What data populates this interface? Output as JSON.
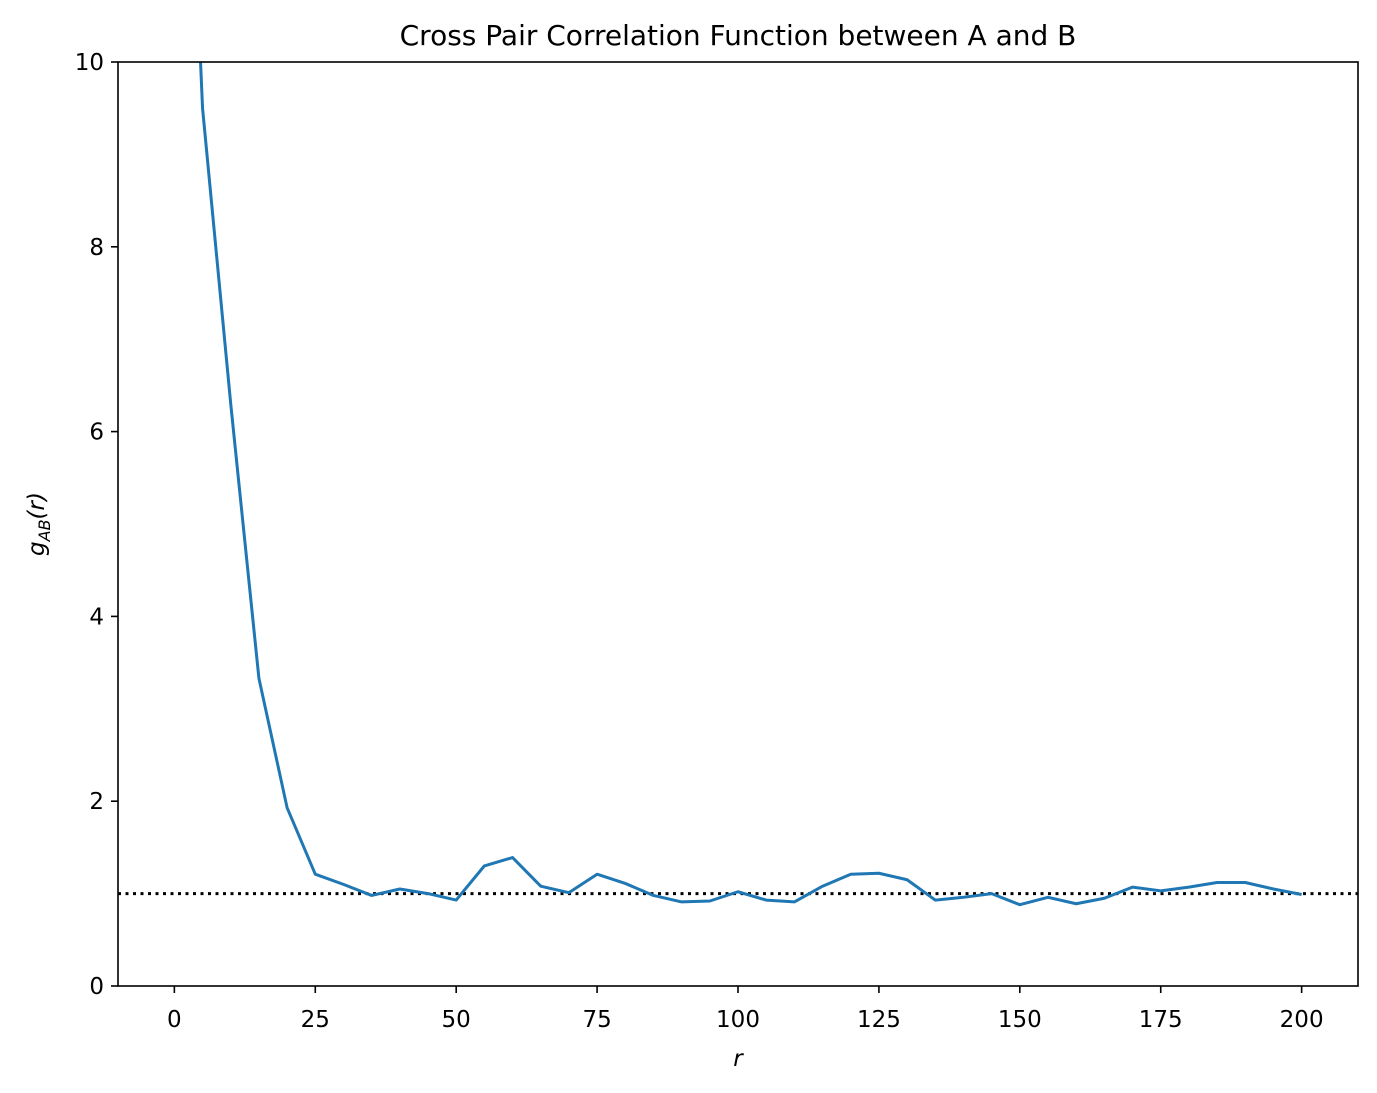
{
  "chart_data": {
    "type": "line",
    "title": "Cross Pair Correlation Function between A and B",
    "xlabel": "r",
    "ylabel": {
      "main": "g",
      "subscript": "AB",
      "suffix": "(r)"
    },
    "xlim": [
      -10,
      210
    ],
    "ylim": [
      0,
      10
    ],
    "x_ticks": [
      0,
      25,
      50,
      75,
      100,
      125,
      150,
      175,
      200
    ],
    "y_ticks": [
      0,
      2,
      4,
      6,
      8,
      10
    ],
    "grid": false,
    "series": [
      {
        "x": [
          0,
          5,
          10,
          15,
          20,
          25,
          30,
          35,
          40,
          45,
          50,
          55,
          60,
          65,
          70,
          75,
          80,
          85,
          90,
          95,
          100,
          105,
          110,
          115,
          120,
          125,
          130,
          135,
          140,
          145,
          150,
          155,
          160,
          165,
          170,
          175,
          180,
          185,
          190,
          195,
          200
        ],
        "values": [
          16.5,
          9.5,
          6.3,
          3.33,
          1.93,
          1.21,
          1.1,
          0.98,
          1.05,
          1.0,
          0.93,
          1.3,
          1.39,
          1.08,
          1.01,
          1.21,
          1.11,
          0.98,
          0.91,
          0.92,
          1.02,
          0.93,
          0.91,
          1.08,
          1.21,
          1.22,
          1.15,
          0.93,
          0.96,
          1.0,
          0.88,
          0.96,
          0.89,
          0.95,
          1.07,
          1.03,
          1.07,
          1.12,
          1.12,
          1.05,
          0.99
        ],
        "color": "#1f77b4",
        "style": "solid"
      }
    ],
    "reference_line": {
      "y": 1.0,
      "color": "#000000",
      "style": "dotted"
    }
  }
}
